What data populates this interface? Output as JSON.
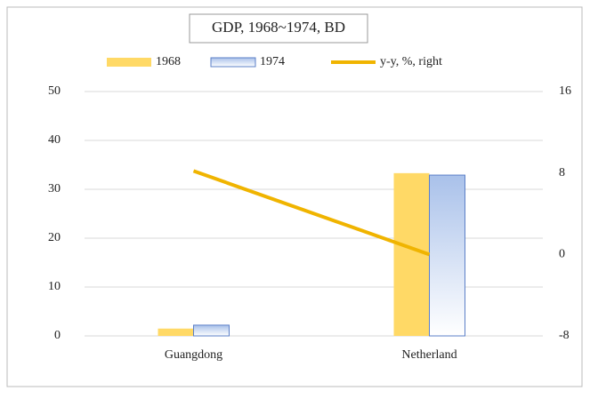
{
  "chart_data": {
    "type": "bar",
    "title": "GDP, 1968~1974, BD",
    "categories": [
      "Guangdong",
      "Netherland"
    ],
    "series": [
      {
        "name": "1968",
        "color": "#ffd966",
        "values": [
          1.5,
          33.3
        ]
      },
      {
        "name": "1974",
        "color": "#a9c1ea",
        "values": [
          2.2,
          32.9
        ]
      },
      {
        "name": "y-y, %, right",
        "color": "#f0b400",
        "type": "line",
        "axis": "y2",
        "values": [
          8.2,
          0
        ]
      }
    ],
    "ylim": [
      0,
      50
    ],
    "yticks": [
      0,
      10,
      20,
      30,
      40,
      50
    ],
    "y2lim": [
      -8,
      16
    ],
    "y2ticks": [
      -8,
      0,
      8,
      16
    ],
    "grid": true,
    "legend": "top"
  }
}
